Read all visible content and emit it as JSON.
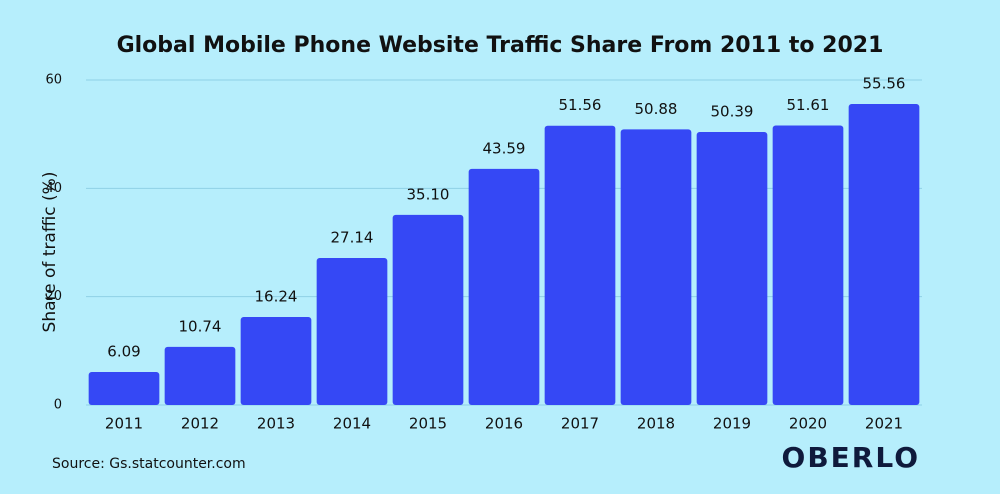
{
  "chart_data": {
    "type": "bar",
    "title": "Global Mobile Phone Website Traffic Share From 2011 to 2021",
    "y_label": "Share of traffic (%)",
    "categories": [
      "2011",
      "2012",
      "2013",
      "2014",
      "2015",
      "2016",
      "2017",
      "2018",
      "2019",
      "2020",
      "2021"
    ],
    "values": [
      6.09,
      10.74,
      16.24,
      27.14,
      35.1,
      43.59,
      51.56,
      50.88,
      50.39,
      51.61,
      55.56
    ],
    "value_labels": [
      "6.09",
      "10.74",
      "16.24",
      "27.14",
      "35.10",
      "43.59",
      "51.56",
      "50.88",
      "50.39",
      "51.61",
      "55.56"
    ],
    "color": "#3548f5",
    "ylim": [
      0,
      60
    ],
    "yticks": [
      0,
      20,
      40,
      60
    ],
    "grid": true,
    "source": "Source: Gs.statcounter.com",
    "brand": "OBERLO"
  }
}
